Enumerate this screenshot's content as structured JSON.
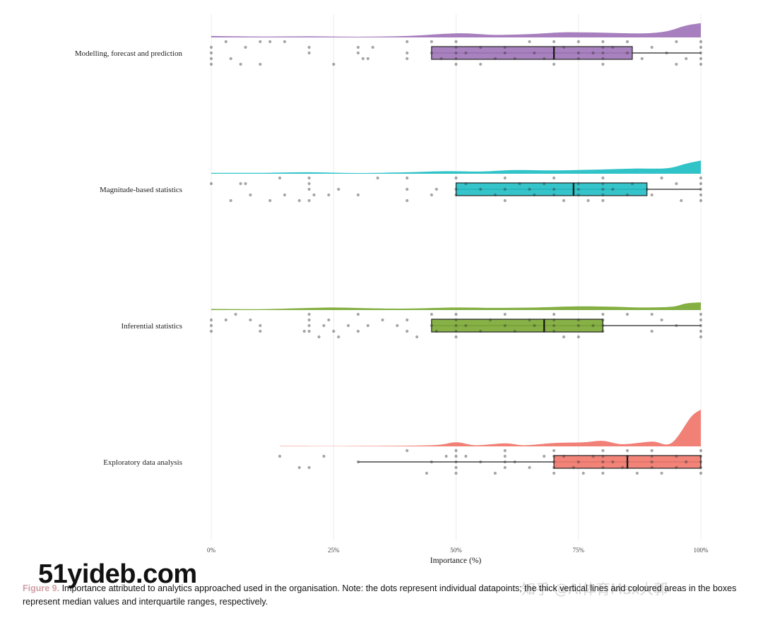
{
  "chart_data": {
    "type": "raincloud",
    "xlabel": "Importance (%)",
    "xticks": [
      0,
      25,
      50,
      75,
      100
    ],
    "xtick_labels": [
      "0%",
      "25%",
      "50%",
      "75%",
      "100%"
    ],
    "xlim": [
      0,
      100
    ],
    "grid": "vertical",
    "series": [
      {
        "name": "Modelling, forecast and prediction",
        "color": "#9f74b8",
        "box": {
          "q1": 45,
          "median": 70,
          "q3": 86,
          "whisker_low": 45,
          "whisker_high": 100
        },
        "density": [
          [
            0,
            0.08
          ],
          [
            10,
            0.05
          ],
          [
            20,
            0.06
          ],
          [
            30,
            0.04
          ],
          [
            40,
            0.08
          ],
          [
            48,
            0.2
          ],
          [
            52,
            0.22
          ],
          [
            58,
            0.14
          ],
          [
            65,
            0.18
          ],
          [
            72,
            0.28
          ],
          [
            80,
            0.26
          ],
          [
            88,
            0.22
          ],
          [
            93,
            0.34
          ],
          [
            97,
            0.65
          ],
          [
            100,
            0.78
          ]
        ],
        "points": [
          [
            0,
            -1
          ],
          [
            0,
            0
          ],
          [
            0,
            1
          ],
          [
            0,
            2
          ],
          [
            3,
            -2
          ],
          [
            4,
            1
          ],
          [
            6,
            2
          ],
          [
            7,
            -1
          ],
          [
            10,
            2
          ],
          [
            10,
            -2
          ],
          [
            12,
            -2
          ],
          [
            15,
            -2
          ],
          [
            20,
            -1
          ],
          [
            20,
            0
          ],
          [
            25,
            2
          ],
          [
            30,
            -1
          ],
          [
            30,
            0
          ],
          [
            31,
            1
          ],
          [
            32,
            1
          ],
          [
            33,
            -1
          ],
          [
            40,
            -2
          ],
          [
            40,
            0
          ],
          [
            40,
            1
          ],
          [
            45,
            -2
          ],
          [
            45,
            0
          ],
          [
            47,
            1
          ],
          [
            50,
            -2
          ],
          [
            50,
            -1
          ],
          [
            50,
            0
          ],
          [
            50,
            1
          ],
          [
            50,
            2
          ],
          [
            52,
            0
          ],
          [
            55,
            -1
          ],
          [
            55,
            2
          ],
          [
            58,
            1
          ],
          [
            60,
            -1
          ],
          [
            60,
            0
          ],
          [
            62,
            1
          ],
          [
            65,
            -2
          ],
          [
            66,
            0
          ],
          [
            68,
            1
          ],
          [
            70,
            -2
          ],
          [
            70,
            -1
          ],
          [
            70,
            0
          ],
          [
            70,
            1
          ],
          [
            70,
            2
          ],
          [
            72,
            -1
          ],
          [
            75,
            -2
          ],
          [
            75,
            0
          ],
          [
            75,
            1
          ],
          [
            78,
            0
          ],
          [
            80,
            -2
          ],
          [
            80,
            -1
          ],
          [
            80,
            0
          ],
          [
            80,
            1
          ],
          [
            80,
            2
          ],
          [
            82,
            -1
          ],
          [
            85,
            -2
          ],
          [
            85,
            0
          ],
          [
            88,
            1
          ],
          [
            90,
            -1
          ],
          [
            93,
            0
          ],
          [
            95,
            -2
          ],
          [
            95,
            2
          ],
          [
            97,
            1
          ],
          [
            100,
            -2
          ],
          [
            100,
            -1
          ],
          [
            100,
            0
          ],
          [
            100,
            1
          ],
          [
            100,
            2
          ]
        ]
      },
      {
        "name": "Magnitude-based statistics",
        "color": "#1ebec3",
        "box": {
          "q1": 50,
          "median": 74,
          "q3": 89,
          "whisker_low": 50,
          "whisker_high": 100
        },
        "density": [
          [
            0,
            0.05
          ],
          [
            10,
            0.05
          ],
          [
            20,
            0.08
          ],
          [
            30,
            0.04
          ],
          [
            40,
            0.08
          ],
          [
            48,
            0.14
          ],
          [
            55,
            0.12
          ],
          [
            62,
            0.2
          ],
          [
            70,
            0.18
          ],
          [
            78,
            0.22
          ],
          [
            86,
            0.28
          ],
          [
            93,
            0.3
          ],
          [
            97,
            0.55
          ],
          [
            100,
            0.72
          ]
        ],
        "points": [
          [
            0,
            -1
          ],
          [
            4,
            2
          ],
          [
            6,
            -1
          ],
          [
            7,
            -1
          ],
          [
            8,
            1
          ],
          [
            12,
            2
          ],
          [
            14,
            -2
          ],
          [
            15,
            1
          ],
          [
            18,
            2
          ],
          [
            20,
            -2
          ],
          [
            20,
            -1
          ],
          [
            20,
            0
          ],
          [
            20,
            2
          ],
          [
            21,
            1
          ],
          [
            24,
            1
          ],
          [
            26,
            0
          ],
          [
            30,
            1
          ],
          [
            34,
            -2
          ],
          [
            40,
            -2
          ],
          [
            40,
            0
          ],
          [
            40,
            2
          ],
          [
            45,
            1
          ],
          [
            46,
            0
          ],
          [
            50,
            -2
          ],
          [
            50,
            0
          ],
          [
            50,
            1
          ],
          [
            52,
            -1
          ],
          [
            55,
            0
          ],
          [
            58,
            1
          ],
          [
            60,
            -2
          ],
          [
            60,
            0
          ],
          [
            60,
            2
          ],
          [
            63,
            -1
          ],
          [
            65,
            0
          ],
          [
            66,
            1
          ],
          [
            68,
            -1
          ],
          [
            70,
            -2
          ],
          [
            70,
            0
          ],
          [
            70,
            1
          ],
          [
            72,
            2
          ],
          [
            75,
            -1
          ],
          [
            75,
            0
          ],
          [
            75,
            1
          ],
          [
            77,
            2
          ],
          [
            80,
            -2
          ],
          [
            80,
            -1
          ],
          [
            80,
            0
          ],
          [
            80,
            1
          ],
          [
            80,
            2
          ],
          [
            82,
            0
          ],
          [
            85,
            1
          ],
          [
            86,
            -1
          ],
          [
            89,
            0
          ],
          [
            90,
            1
          ],
          [
            92,
            -2
          ],
          [
            95,
            -1
          ],
          [
            96,
            2
          ],
          [
            100,
            -2
          ],
          [
            100,
            -1
          ],
          [
            100,
            0
          ],
          [
            100,
            1
          ],
          [
            100,
            2
          ]
        ]
      },
      {
        "name": "Inferential statistics",
        "color": "#7aa832",
        "box": {
          "q1": 45,
          "median": 68,
          "q3": 80,
          "whisker_low": 45,
          "whisker_high": 100
        },
        "density": [
          [
            0,
            0.06
          ],
          [
            10,
            0.05
          ],
          [
            18,
            0.1
          ],
          [
            25,
            0.14
          ],
          [
            32,
            0.1
          ],
          [
            40,
            0.08
          ],
          [
            50,
            0.14
          ],
          [
            58,
            0.12
          ],
          [
            66,
            0.14
          ],
          [
            75,
            0.2
          ],
          [
            82,
            0.18
          ],
          [
            88,
            0.14
          ],
          [
            94,
            0.18
          ],
          [
            97,
            0.36
          ],
          [
            100,
            0.42
          ]
        ],
        "points": [
          [
            0,
            -1
          ],
          [
            0,
            0
          ],
          [
            0,
            1
          ],
          [
            3,
            -1
          ],
          [
            5,
            -2
          ],
          [
            8,
            -1
          ],
          [
            10,
            0
          ],
          [
            10,
            1
          ],
          [
            19,
            1
          ],
          [
            20,
            -2
          ],
          [
            20,
            -1
          ],
          [
            20,
            0
          ],
          [
            20,
            1
          ],
          [
            22,
            2
          ],
          [
            23,
            0
          ],
          [
            24,
            -1
          ],
          [
            25,
            1
          ],
          [
            26,
            2
          ],
          [
            28,
            0
          ],
          [
            30,
            -2
          ],
          [
            30,
            1
          ],
          [
            32,
            0
          ],
          [
            35,
            -1
          ],
          [
            38,
            0
          ],
          [
            40,
            -1
          ],
          [
            40,
            1
          ],
          [
            42,
            2
          ],
          [
            45,
            -2
          ],
          [
            45,
            0
          ],
          [
            46,
            1
          ],
          [
            50,
            -2
          ],
          [
            50,
            -1
          ],
          [
            50,
            0
          ],
          [
            50,
            1
          ],
          [
            50,
            2
          ],
          [
            52,
            0
          ],
          [
            55,
            1
          ],
          [
            57,
            -1
          ],
          [
            60,
            -2
          ],
          [
            60,
            0
          ],
          [
            62,
            1
          ],
          [
            65,
            -1
          ],
          [
            66,
            0
          ],
          [
            68,
            1
          ],
          [
            70,
            -2
          ],
          [
            70,
            -1
          ],
          [
            70,
            0
          ],
          [
            70,
            1
          ],
          [
            72,
            2
          ],
          [
            75,
            -1
          ],
          [
            75,
            0
          ],
          [
            75,
            2
          ],
          [
            78,
            0
          ],
          [
            80,
            -2
          ],
          [
            80,
            -1
          ],
          [
            80,
            0
          ],
          [
            80,
            1
          ],
          [
            85,
            -2
          ],
          [
            90,
            -2
          ],
          [
            90,
            1
          ],
          [
            92,
            -1
          ],
          [
            95,
            0
          ],
          [
            100,
            -2
          ],
          [
            100,
            -1
          ],
          [
            100,
            0
          ],
          [
            100,
            1
          ],
          [
            100,
            2
          ]
        ]
      },
      {
        "name": "Exploratory data analysis",
        "color": "#f0756a",
        "box": {
          "q1": 70,
          "median": 85,
          "q3": 100,
          "whisker_low": 30,
          "whisker_high": 100
        },
        "density": [
          [
            14,
            0.02
          ],
          [
            30,
            0.02
          ],
          [
            45,
            0.06
          ],
          [
            50,
            0.22
          ],
          [
            54,
            0.06
          ],
          [
            60,
            0.16
          ],
          [
            64,
            0.06
          ],
          [
            70,
            0.18
          ],
          [
            76,
            0.22
          ],
          [
            80,
            0.3
          ],
          [
            84,
            0.12
          ],
          [
            90,
            0.26
          ],
          [
            94,
            0.18
          ],
          [
            98,
            1.6
          ],
          [
            100,
            2.0
          ]
        ],
        "points": [
          [
            14,
            -1
          ],
          [
            18,
            1
          ],
          [
            20,
            1
          ],
          [
            23,
            -1
          ],
          [
            30,
            0
          ],
          [
            40,
            -2
          ],
          [
            44,
            2
          ],
          [
            45,
            0
          ],
          [
            48,
            -1
          ],
          [
            50,
            -2
          ],
          [
            50,
            -1
          ],
          [
            50,
            0
          ],
          [
            50,
            1
          ],
          [
            50,
            2
          ],
          [
            52,
            -1
          ],
          [
            55,
            0
          ],
          [
            58,
            2
          ],
          [
            60,
            -2
          ],
          [
            60,
            -1
          ],
          [
            60,
            0
          ],
          [
            60,
            1
          ],
          [
            62,
            0
          ],
          [
            65,
            1
          ],
          [
            68,
            -1
          ],
          [
            70,
            -2
          ],
          [
            70,
            -1
          ],
          [
            70,
            0
          ],
          [
            70,
            1
          ],
          [
            70,
            2
          ],
          [
            72,
            -1
          ],
          [
            74,
            1
          ],
          [
            75,
            0
          ],
          [
            76,
            2
          ],
          [
            78,
            -1
          ],
          [
            80,
            -2
          ],
          [
            80,
            -1
          ],
          [
            80,
            0
          ],
          [
            80,
            1
          ],
          [
            80,
            2
          ],
          [
            82,
            0
          ],
          [
            84,
            1
          ],
          [
            85,
            -2
          ],
          [
            85,
            -1
          ],
          [
            85,
            0
          ],
          [
            85,
            1
          ],
          [
            87,
            2
          ],
          [
            90,
            -2
          ],
          [
            90,
            -1
          ],
          [
            90,
            0
          ],
          [
            90,
            1
          ],
          [
            92,
            2
          ],
          [
            95,
            -1
          ],
          [
            95,
            1
          ],
          [
            97,
            0
          ],
          [
            100,
            -2
          ],
          [
            100,
            -1
          ],
          [
            100,
            0
          ],
          [
            100,
            1
          ],
          [
            100,
            2
          ]
        ]
      }
    ]
  },
  "caption": {
    "figure_label": "Figure 9.",
    "text": "Importance attributed to analytics approached used in the organisation. Note: the dots represent individual datapoints; the thick vertical lines and coloured areas in the boxes represent median values and interquartile ranges, respectively."
  },
  "watermarks": {
    "left": "51yideb.com",
    "right": "知乎 @AI体育Max大郭"
  }
}
